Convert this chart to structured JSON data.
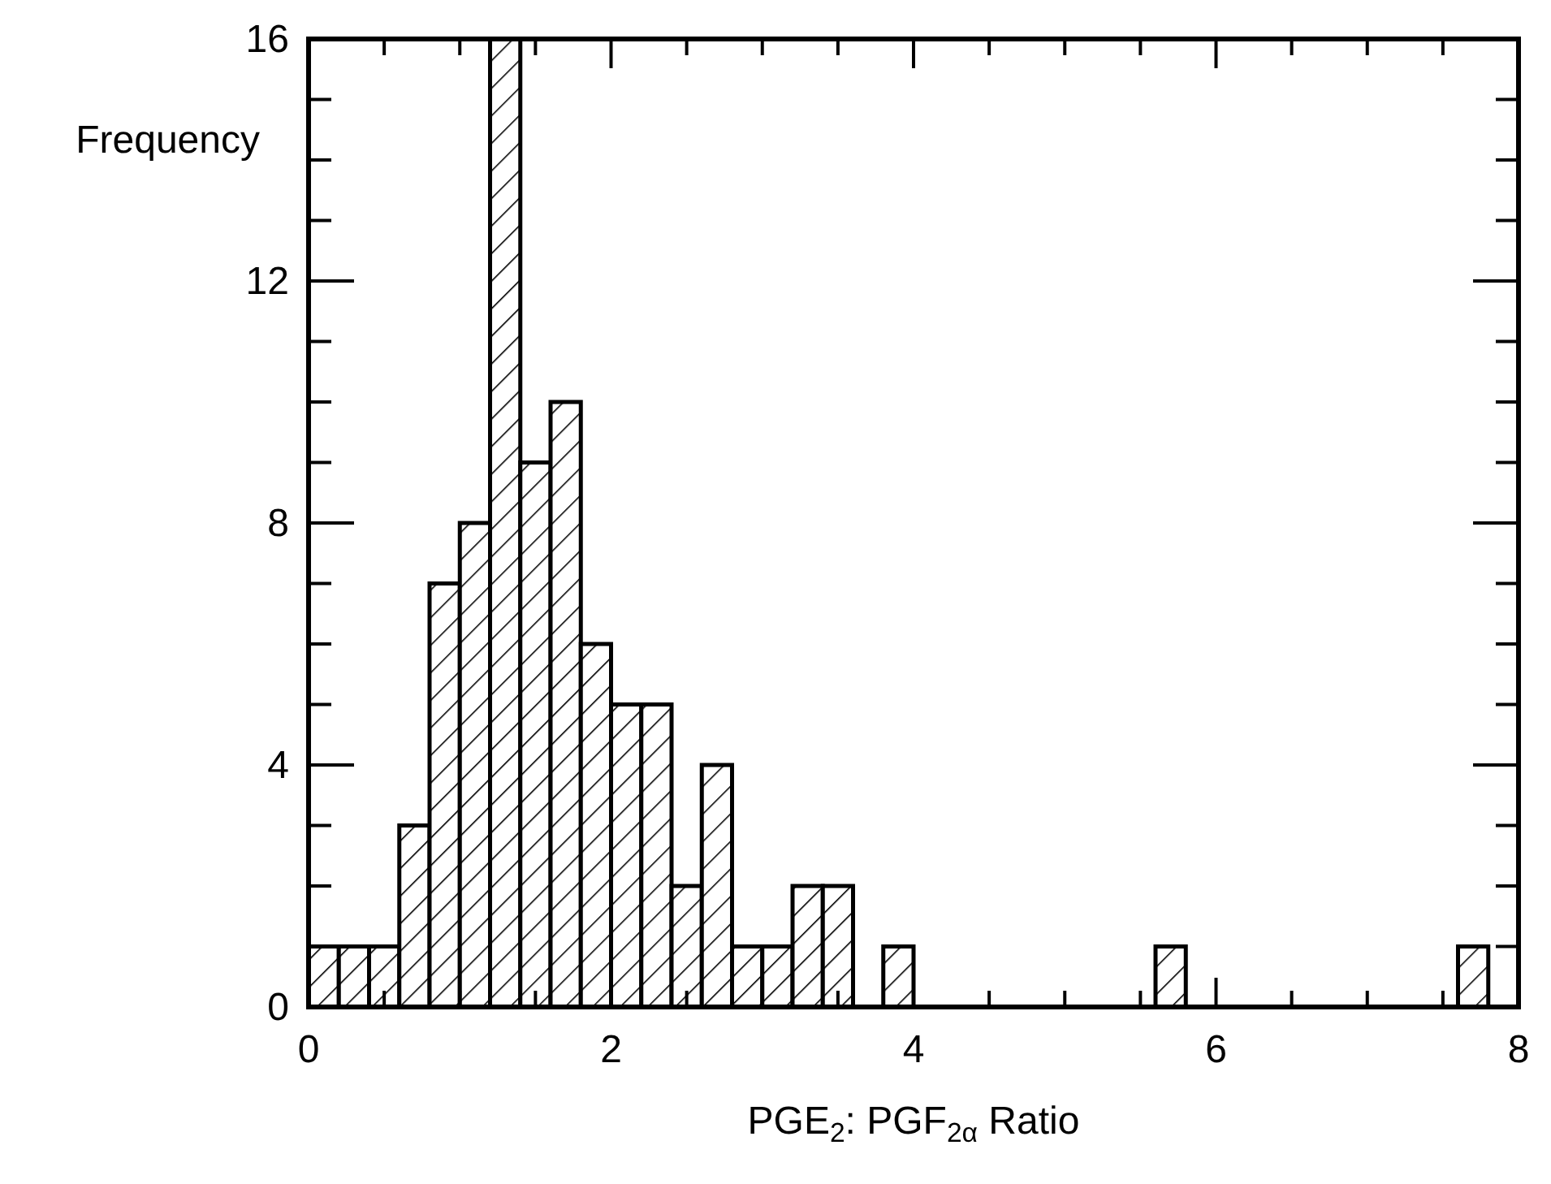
{
  "chart_data": {
    "type": "histogram",
    "xlabel": "PGE$_{2}$: PGF$_{2α}$ Ratio",
    "ylabel": "Frequency",
    "bins": [
      0,
      0.2,
      0.4,
      0.6,
      0.8,
      1.0,
      1.2,
      1.4,
      1.6,
      1.8,
      2.0,
      2.2,
      2.4,
      2.6,
      2.8,
      3.0,
      3.2,
      3.4,
      3.6,
      3.8,
      4.0,
      4.2,
      4.4,
      4.6,
      4.8,
      5.0,
      5.2,
      5.4,
      5.6,
      5.8,
      6.0,
      6.2,
      6.4,
      6.6,
      6.8,
      7.0,
      7.2,
      7.4,
      7.6,
      7.8,
      8.0
    ],
    "values": [
      1,
      1,
      1,
      3,
      7,
      8,
      16,
      9,
      10,
      6,
      5,
      5,
      2,
      4,
      1,
      1,
      2,
      2,
      0,
      1,
      0,
      0,
      0,
      0,
      0,
      0,
      0,
      0,
      1,
      0,
      0,
      0,
      0,
      0,
      0,
      0,
      0,
      0,
      1,
      0
    ],
    "color": "#000000",
    "xlim": [
      0,
      8
    ],
    "xticks": [
      0,
      {
        "value": 0.5,
        "label": null
      },
      {
        "value": 1,
        "label": null
      },
      {
        "value": 1.5,
        "label": null
      },
      2,
      {
        "value": 2.5,
        "label": null
      },
      {
        "value": 3,
        "label": null
      },
      {
        "value": 3.5,
        "label": null
      },
      4,
      {
        "value": 4.5,
        "label": null
      },
      {
        "value": 5,
        "label": null
      },
      {
        "value": 5.5,
        "label": null
      },
      6,
      {
        "value": 6.5,
        "label": null
      },
      {
        "value": 7,
        "label": null
      },
      {
        "value": 7.5,
        "label": null
      },
      8
    ],
    "ylim": [
      0,
      16
    ],
    "yticks": [
      0,
      {
        "value": 1,
        "label": null
      },
      {
        "value": 2,
        "label": null
      },
      {
        "value": 3,
        "label": null
      },
      4,
      {
        "value": 5,
        "label": null
      },
      {
        "value": 6,
        "label": null
      },
      {
        "value": 7,
        "label": null
      },
      8,
      {
        "value": 9,
        "label": null
      },
      {
        "value": 10,
        "label": null
      },
      {
        "value": 11,
        "label": null
      },
      12,
      {
        "value": 13,
        "label": null
      },
      {
        "value": 14,
        "label": null
      },
      {
        "value": 15,
        "label": null
      },
      16
    ],
    "grid": false
  }
}
